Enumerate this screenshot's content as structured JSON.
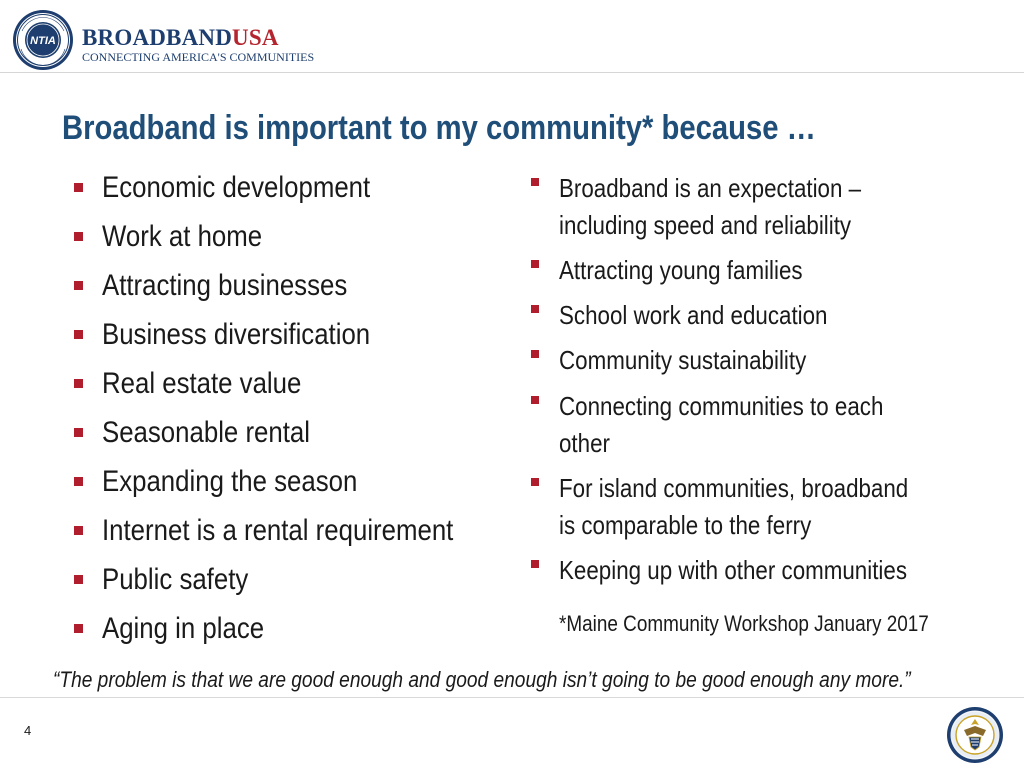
{
  "header": {
    "seal_text": "NTIA",
    "brand_main": "BROADBAND",
    "brand_accent": "USA",
    "tagline": "CONNECTING AMERICA'S COMMUNITIES"
  },
  "title": "Broadband is important to my community* because …",
  "left_items": [
    "Economic development",
    "Work at home",
    "Attracting businesses",
    "Business diversification",
    "Real estate value",
    "Seasonable rental",
    "Expanding the season",
    "Internet is a rental requirement",
    "Public safety",
    "Aging in place"
  ],
  "right_items": [
    [
      "Broadband is an expectation –",
      "including speed and reliability"
    ],
    [
      "Attracting young families"
    ],
    [
      "School work and education"
    ],
    [
      "Community sustainability"
    ],
    [
      "Connecting communities to each",
      "other"
    ],
    [
      "For island communities, broadband",
      "is comparable to the ferry"
    ],
    [
      "Keeping up with other communities"
    ]
  ],
  "footnote": "*Maine Community Workshop January 2017",
  "quote": "“The problem is that we are good enough and good enough isn’t going to be good enough any more.”",
  "footer": {
    "page_number": "4"
  },
  "colors": {
    "title": "#1f4e79",
    "bullet": "#b01e2e",
    "brand_blue": "#1d3e6e",
    "brand_red": "#b5252f"
  },
  "icons": {
    "header_logo": "ntia-seal-icon",
    "footer_logo": "department-of-commerce-seal-icon"
  }
}
